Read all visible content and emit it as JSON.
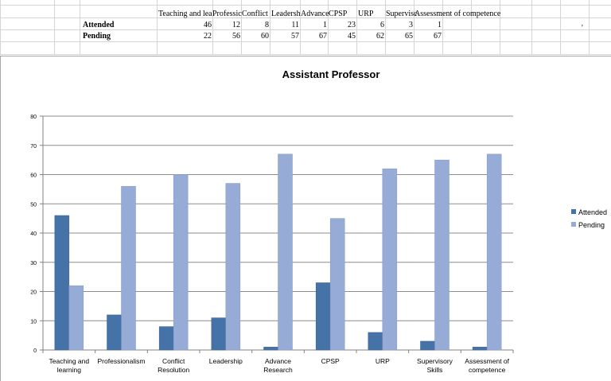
{
  "spreadsheet": {
    "headers": [
      "Teaching and lea",
      "Professic",
      "Conflict",
      "Leadersh",
      "Advance",
      "CPSP",
      "URP",
      "Supervisc",
      "Assessment of competence"
    ],
    "rows": [
      {
        "label": "Attended",
        "values": [
          "46",
          "12",
          "8",
          "11",
          "1",
          "23",
          "6",
          "3",
          "1"
        ]
      },
      {
        "label": "Pending",
        "values": [
          "22",
          "56",
          "60",
          "57",
          "67",
          "45",
          "62",
          "65",
          "67"
        ]
      }
    ],
    "stray_mark": "'"
  },
  "chart_data": {
    "type": "bar",
    "title": "Assistant Professor",
    "categories": [
      [
        "Teaching and",
        "learning"
      ],
      [
        "Professionalism"
      ],
      [
        "Conflict",
        "Resolution"
      ],
      [
        "Leadership"
      ],
      [
        "Advance",
        "Research"
      ],
      [
        "CPSP"
      ],
      [
        "URP"
      ],
      [
        "Supervisory",
        "Skills"
      ],
      [
        "Assessment of",
        "competence"
      ]
    ],
    "series": [
      {
        "name": "Attended",
        "color": "#4572A7",
        "values": [
          46,
          12,
          8,
          11,
          1,
          23,
          6,
          3,
          1
        ]
      },
      {
        "name": "Pending",
        "color": "#97ABD7",
        "values": [
          22,
          56,
          60,
          57,
          67,
          45,
          62,
          65,
          67
        ]
      }
    ],
    "ylim": [
      0,
      80
    ],
    "yticks": [
      0,
      10,
      20,
      30,
      40,
      50,
      60,
      70,
      80
    ],
    "grid": true,
    "legend_position": "right"
  }
}
